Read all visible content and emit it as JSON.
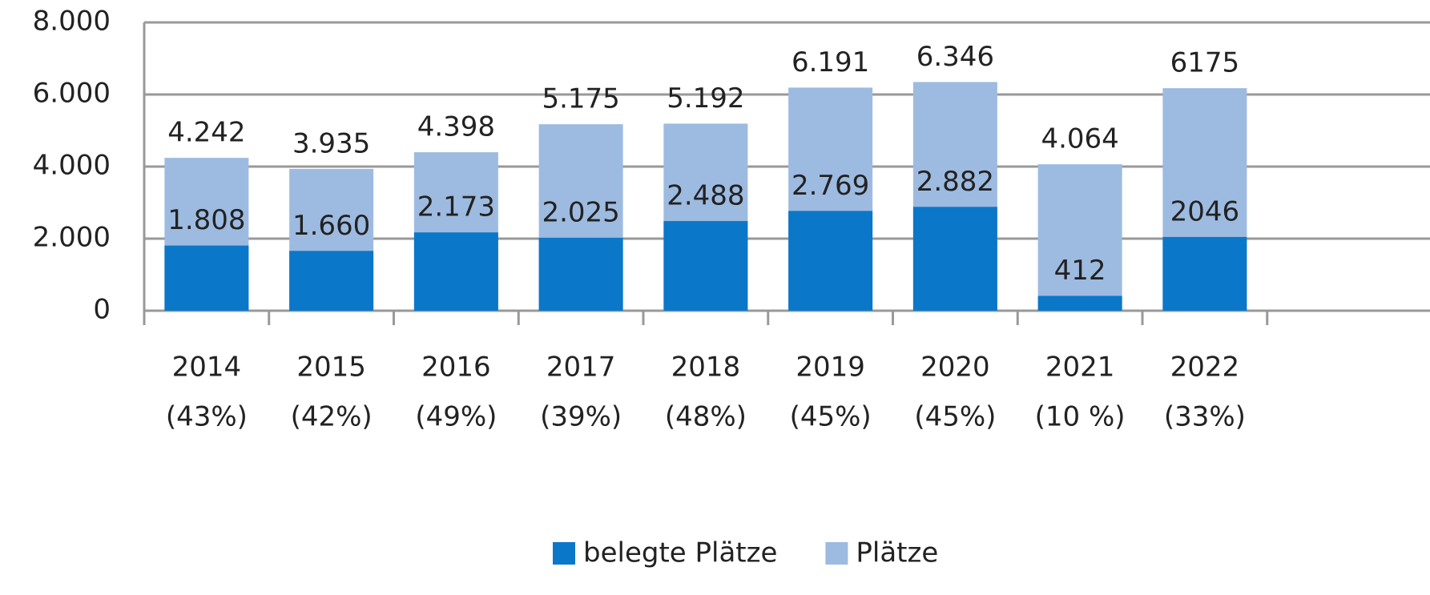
{
  "chart_data": {
    "type": "bar",
    "categories": [
      "2014",
      "2015",
      "2016",
      "2017",
      "2018",
      "2019",
      "2020",
      "2021",
      "2022"
    ],
    "category_notes": [
      "(43%)",
      "(42%)",
      "(49%)",
      "(39%)",
      "(48%)",
      "(45%)",
      "(45%)",
      "(10 %)",
      "(33%)"
    ],
    "series": [
      {
        "name": "Plätze",
        "color": "#9dbbe0",
        "values": [
          4242,
          3935,
          4398,
          5175,
          5192,
          6191,
          6346,
          4064,
          6175
        ],
        "value_labels": [
          "4.242",
          "3.935",
          "4.398",
          "5.175",
          "5.192",
          "6.191",
          "6.346",
          "4.064",
          "6175"
        ]
      },
      {
        "name": "belegte Plätze",
        "color": "#0b77c9",
        "values": [
          1808,
          1660,
          2173,
          2025,
          2488,
          2769,
          2882,
          412,
          2046
        ],
        "value_labels": [
          "1.808",
          "1.660",
          "2.173",
          "2.025",
          "2.488",
          "2.769",
          "2.882",
          "412",
          "2046"
        ]
      }
    ],
    "legend_order": [
      1,
      0
    ],
    "ylim": [
      0,
      8000
    ],
    "yticks": [
      0,
      {
        "value": 2000,
        "label": "2.000"
      },
      {
        "value": 4000,
        "label": "4.000"
      },
      {
        "value": 6000,
        "label": "6.000"
      },
      {
        "value": 8000,
        "label": "8.000"
      }
    ],
    "grid": true
  }
}
